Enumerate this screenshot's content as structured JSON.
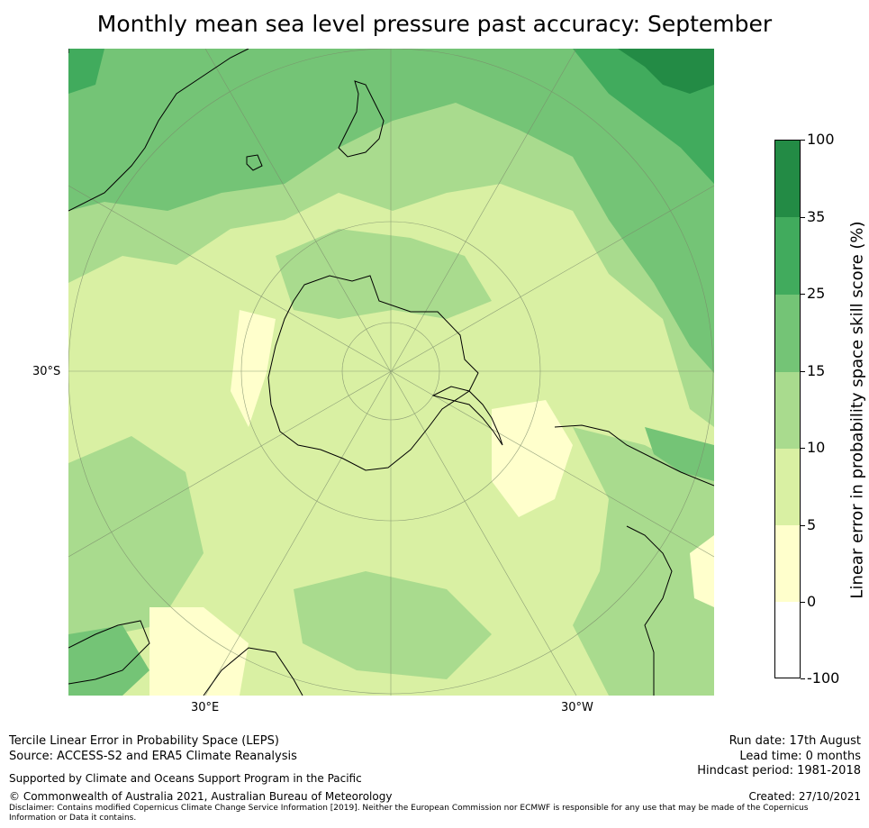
{
  "title": "Monthly mean sea level pressure past accuracy: September",
  "map": {
    "lat_labels": [
      "30°S"
    ],
    "lon_labels": [
      "30°E",
      "30°W"
    ],
    "colors": {
      "land_border": "#000000",
      "grid": "#7a8a6a",
      "very_high": "#238b45",
      "high": "#41ab5d",
      "mid_high": "#74c476",
      "mid": "#a9db8e",
      "low": "#d9f0a3",
      "very_low": "#ffffcc",
      "negative": "#ffffff"
    },
    "projection": "south-polar-stereographic",
    "gridlines": true
  },
  "colorbar": {
    "label": "Linear error in probability space skill score (%)",
    "ticks": [
      "100",
      "35",
      "25",
      "15",
      "10",
      "5",
      "0",
      "-100"
    ],
    "bins": [
      {
        "from": 35,
        "to": 100,
        "color": "#238b45"
      },
      {
        "from": 25,
        "to": 35,
        "color": "#41ab5d"
      },
      {
        "from": 15,
        "to": 25,
        "color": "#74c476"
      },
      {
        "from": 10,
        "to": 15,
        "color": "#a9db8e"
      },
      {
        "from": 5,
        "to": 10,
        "color": "#d9f0a3"
      },
      {
        "from": 0,
        "to": 5,
        "color": "#ffffcc"
      },
      {
        "from": -100,
        "to": 0,
        "color": "#ffffff"
      }
    ]
  },
  "footer": {
    "line1": "Tercile Linear Error in Probability Space (LEPS)",
    "line2": "Source: ACCESS-S2 and ERA5 Climate Reanalysis",
    "support": "Supported by Climate and Oceans Support Program in the Pacific",
    "copyright": "© Commonwealth of Australia 2021, Australian Bureau of Meteorology",
    "disclaimer1": "Disclaimer: Contains modified Copernicus Climate Change Service Information [2019]. Neither the European Commission nor ECMWF is responsible for any use that may be made of the Copernicus",
    "disclaimer2": "Information or Data it contains.",
    "run_date": "Run date: 17th August",
    "lead_time": "Lead time: 0 months",
    "hindcast": "Hindcast period: 1981-2018",
    "created": "Created: 27/10/2021"
  }
}
